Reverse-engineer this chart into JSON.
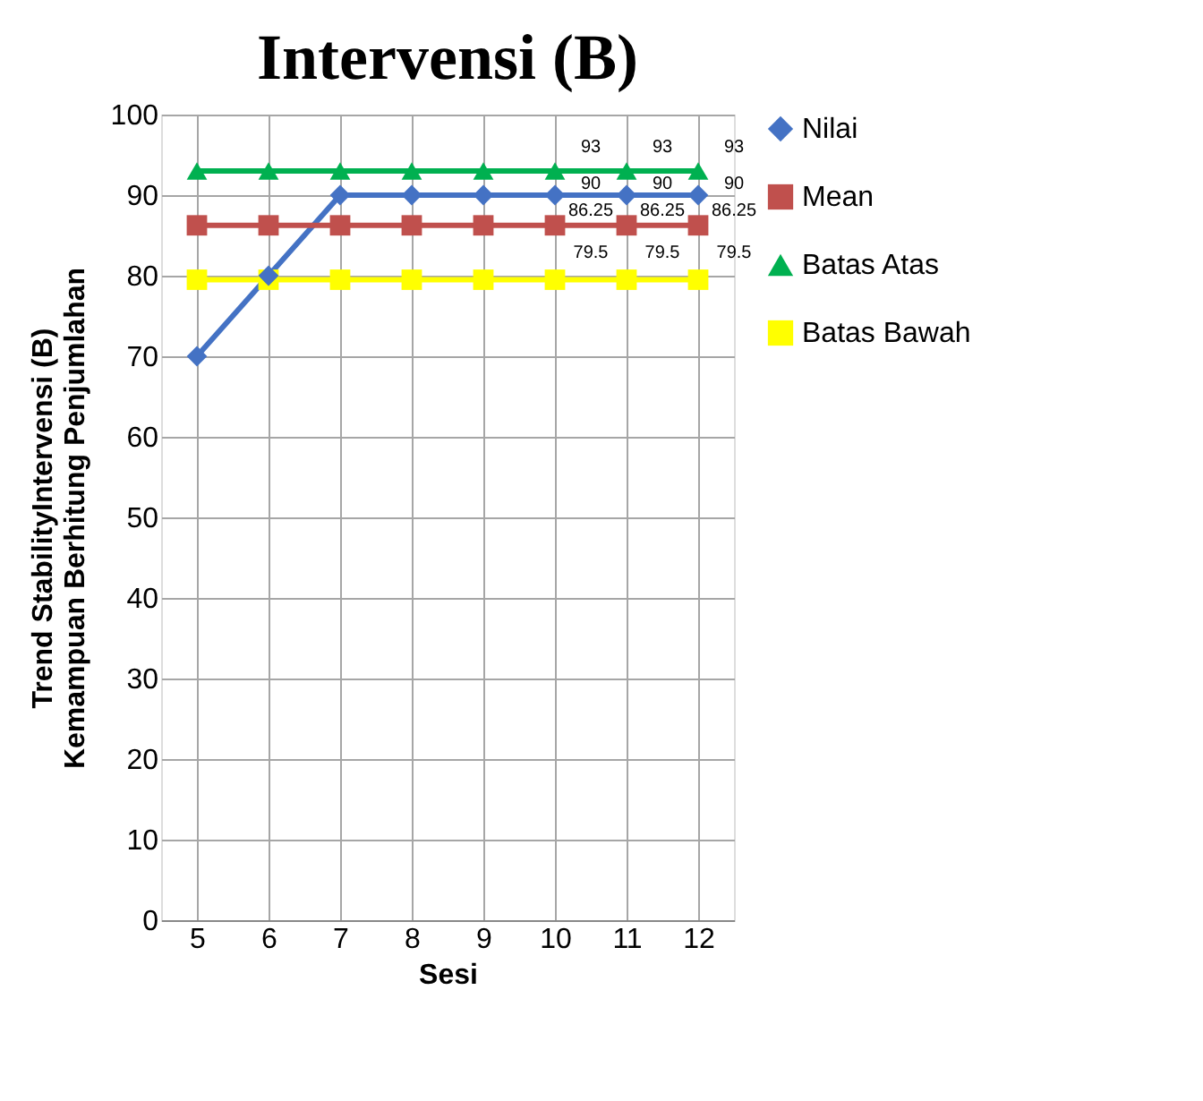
{
  "chart_data": {
    "type": "line",
    "title": "Intervensi (B)",
    "xlabel": "Sesi",
    "ylabel": "Trend StabilityIntervensi (B)\nKemampuan Berhitung Penjumlahan",
    "categories": [
      "5",
      "6",
      "7",
      "8",
      "9",
      "10",
      "11",
      "12"
    ],
    "series": [
      {
        "name": "Nilai",
        "color": "#4472c4",
        "marker": "diamond",
        "values": [
          70,
          80,
          90,
          90,
          90,
          90,
          90,
          90
        ],
        "value_labels": [
          null,
          null,
          null,
          null,
          null,
          "90",
          "90",
          "90"
        ]
      },
      {
        "name": "Mean",
        "color": "#c0504d",
        "marker": "square",
        "values": [
          86.25,
          86.25,
          86.25,
          86.25,
          86.25,
          86.25,
          86.25,
          86.25
        ],
        "value_labels": [
          null,
          null,
          null,
          null,
          null,
          "86.25",
          "86.25",
          "86.25"
        ]
      },
      {
        "name": "Batas Atas",
        "color": "#00b050",
        "marker": "triangle",
        "values": [
          93,
          93,
          93,
          93,
          93,
          93,
          93,
          93
        ],
        "value_labels": [
          null,
          null,
          null,
          null,
          null,
          "93",
          "93",
          "93"
        ]
      },
      {
        "name": "Batas Bawah",
        "color": "#ffff00",
        "marker": "square",
        "values": [
          79.5,
          79.5,
          79.5,
          79.5,
          79.5,
          79.5,
          79.5,
          79.5
        ],
        "value_labels": [
          null,
          null,
          null,
          null,
          null,
          "79.5",
          "79.5",
          "79.5"
        ]
      }
    ],
    "ylim": [
      0,
      100
    ],
    "yticks": [
      0,
      10,
      20,
      30,
      40,
      50,
      60,
      70,
      80,
      90,
      100
    ],
    "grid": true,
    "legend": "right",
    "line_style": "solid"
  }
}
